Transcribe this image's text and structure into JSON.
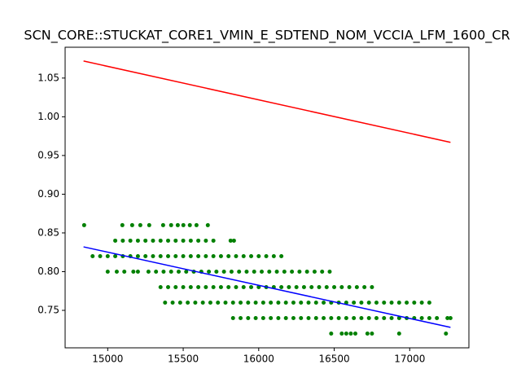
{
  "chart_data": {
    "type": "scatter",
    "title": "SCN_CORE::STUCKAT_CORE1_VMIN_E_SDTEND_NOM_VCCIA_LFM_1600_CR",
    "xlim": [
      14718,
      17392
    ],
    "ylim": [
      0.7016,
      1.0898
    ],
    "xticks": [
      15000,
      15500,
      16000,
      16500,
      17000
    ],
    "yticks": [
      0.75,
      {
        "value": 0.8,
        "label": "0.80"
      },
      0.85,
      {
        "value": 0.9,
        "label": "0.90"
      },
      0.95,
      {
        "value": 1.0,
        "label": "1.00"
      },
      1.05
    ],
    "series": [
      {
        "type": "scatter",
        "color": "#008000",
        "x": [
          14844,
          15097,
          15162,
          15216,
          15275,
          15367,
          15420,
          15464,
          15501,
          15544,
          15588,
          15663,
          15050,
          15100,
          15150,
          15200,
          15250,
          15300,
          15350,
          15400,
          15450,
          15500,
          15550,
          15600,
          15650,
          15700,
          15814,
          15836,
          14900,
          14950,
          15000,
          15050,
          15100,
          15150,
          15200,
          15250,
          15300,
          15350,
          15400,
          15450,
          15500,
          15550,
          15600,
          15650,
          15700,
          15750,
          15800,
          15850,
          15900,
          15950,
          16000,
          16050,
          16100,
          16150,
          15000,
          15060,
          15110,
          15170,
          15200,
          15270,
          15320,
          15370,
          15420,
          15470,
          15520,
          15570,
          15620,
          15670,
          15720,
          15770,
          15820,
          15870,
          15920,
          15970,
          16020,
          16070,
          16120,
          16170,
          16220,
          16270,
          16320,
          16370,
          16420,
          16470,
          15350,
          15400,
          15450,
          15500,
          15550,
          15600,
          15650,
          15700,
          15750,
          15800,
          15850,
          15900,
          15950,
          16000,
          16050,
          16100,
          16150,
          16200,
          16250,
          16300,
          16350,
          16400,
          16450,
          16500,
          16550,
          16600,
          16650,
          16700,
          16750,
          15380,
          15430,
          15480,
          15530,
          15580,
          15630,
          15680,
          15730,
          15780,
          15830,
          15880,
          15930,
          15980,
          16030,
          16080,
          16130,
          16180,
          16230,
          16280,
          16330,
          16380,
          16430,
          16480,
          16530,
          16580,
          16630,
          16680,
          16730,
          16780,
          16830,
          16880,
          16930,
          16980,
          17030,
          17080,
          17130,
          15830,
          15880,
          15930,
          15980,
          16030,
          16080,
          16130,
          16180,
          16230,
          16280,
          16330,
          16380,
          16430,
          16480,
          16530,
          16580,
          16630,
          16680,
          16730,
          16780,
          16830,
          16880,
          16930,
          16980,
          17030,
          17080,
          17130,
          17180,
          17250,
          17270,
          16480,
          16550,
          16580,
          16610,
          16640,
          16720,
          16750,
          16930,
          17240
        ],
        "y": [
          0.86,
          0.86,
          0.86,
          0.86,
          0.86,
          0.86,
          0.86,
          0.86,
          0.86,
          0.86,
          0.86,
          0.86,
          0.84,
          0.84,
          0.84,
          0.84,
          0.84,
          0.84,
          0.84,
          0.84,
          0.84,
          0.84,
          0.84,
          0.84,
          0.84,
          0.84,
          0.84,
          0.84,
          0.82,
          0.82,
          0.82,
          0.82,
          0.82,
          0.82,
          0.82,
          0.82,
          0.82,
          0.82,
          0.82,
          0.82,
          0.82,
          0.82,
          0.82,
          0.82,
          0.82,
          0.82,
          0.82,
          0.82,
          0.82,
          0.82,
          0.82,
          0.82,
          0.82,
          0.82,
          0.8,
          0.8,
          0.8,
          0.8,
          0.8,
          0.8,
          0.8,
          0.8,
          0.8,
          0.8,
          0.8,
          0.8,
          0.8,
          0.8,
          0.8,
          0.8,
          0.8,
          0.8,
          0.8,
          0.8,
          0.8,
          0.8,
          0.8,
          0.8,
          0.8,
          0.8,
          0.8,
          0.8,
          0.8,
          0.8,
          0.78,
          0.78,
          0.78,
          0.78,
          0.78,
          0.78,
          0.78,
          0.78,
          0.78,
          0.78,
          0.78,
          0.78,
          0.78,
          0.78,
          0.78,
          0.78,
          0.78,
          0.78,
          0.78,
          0.78,
          0.78,
          0.78,
          0.78,
          0.78,
          0.78,
          0.78,
          0.78,
          0.78,
          0.78,
          0.76,
          0.76,
          0.76,
          0.76,
          0.76,
          0.76,
          0.76,
          0.76,
          0.76,
          0.76,
          0.76,
          0.76,
          0.76,
          0.76,
          0.76,
          0.76,
          0.76,
          0.76,
          0.76,
          0.76,
          0.76,
          0.76,
          0.76,
          0.76,
          0.76,
          0.76,
          0.76,
          0.76,
          0.76,
          0.76,
          0.76,
          0.76,
          0.76,
          0.76,
          0.76,
          0.76,
          0.74,
          0.74,
          0.74,
          0.74,
          0.74,
          0.74,
          0.74,
          0.74,
          0.74,
          0.74,
          0.74,
          0.74,
          0.74,
          0.74,
          0.74,
          0.74,
          0.74,
          0.74,
          0.74,
          0.74,
          0.74,
          0.74,
          0.74,
          0.74,
          0.74,
          0.74,
          0.74,
          0.74,
          0.74,
          0.74,
          0.72,
          0.72,
          0.72,
          0.72,
          0.72,
          0.72,
          0.72,
          0.72,
          0.72
        ]
      },
      {
        "type": "line",
        "color": "#ff0000",
        "x": [
          14840,
          17270
        ],
        "y": [
          1.072,
          0.967
        ]
      },
      {
        "type": "line",
        "color": "#0000ff",
        "x": [
          14840,
          17270
        ],
        "y": [
          0.832,
          0.728
        ]
      }
    ]
  }
}
